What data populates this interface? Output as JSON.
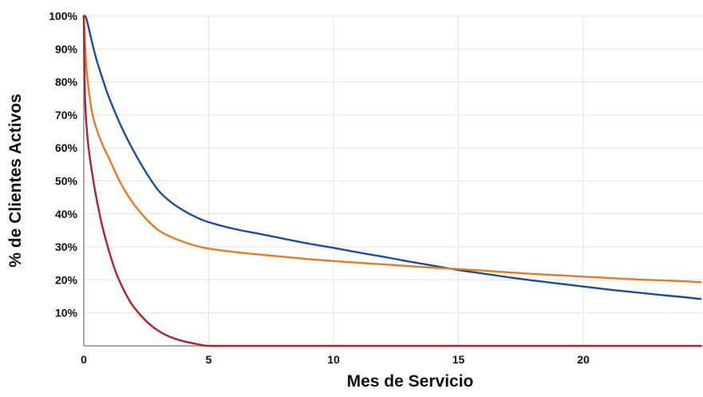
{
  "chart_data": {
    "type": "line",
    "title": "",
    "xlabel": "Mes de Servicio",
    "ylabel": "% de Clientes Activos",
    "xlim": [
      0,
      24.7
    ],
    "ylim": [
      0,
      100
    ],
    "grid": true,
    "x_ticks": [
      {
        "value": 0,
        "label": "0"
      },
      {
        "value": 5,
        "label": "5"
      },
      {
        "value": 10,
        "label": "10"
      },
      {
        "value": 15,
        "label": "15"
      },
      {
        "value": 20,
        "label": "20"
      }
    ],
    "y_ticks": [
      {
        "value": 10,
        "label": "10%"
      },
      {
        "value": 20,
        "label": "20%"
      },
      {
        "value": 30,
        "label": "30%"
      },
      {
        "value": 40,
        "label": "40%"
      },
      {
        "value": 50,
        "label": "50%"
      },
      {
        "value": 60,
        "label": "60%"
      },
      {
        "value": 70,
        "label": "70%"
      },
      {
        "value": 80,
        "label": "80%"
      },
      {
        "value": 90,
        "label": "90%"
      },
      {
        "value": 100,
        "label": "100%"
      }
    ],
    "series": [
      {
        "color": "#1a4e9a",
        "x": [
          0,
          0.1,
          0.3,
          0.5,
          0.75,
          1,
          1.5,
          2,
          2.5,
          3,
          3.5,
          4,
          4.5,
          5,
          6,
          7,
          8,
          9,
          10,
          11,
          12,
          13,
          14,
          15,
          16,
          17,
          18,
          19,
          20,
          21,
          22,
          23,
          24,
          24.7
        ],
        "y": [
          100,
          99.3,
          93,
          87,
          81,
          75.5,
          66.5,
          59,
          52.5,
          47,
          43.5,
          41,
          39,
          37.5,
          35.5,
          34,
          32.5,
          31,
          29.7,
          28.3,
          27,
          25.6,
          24.3,
          23,
          21.9,
          20.8,
          19.8,
          18.9,
          18,
          17.1,
          16.3,
          15.5,
          14.8,
          14.2
        ]
      },
      {
        "color": "#e87a24",
        "x": [
          0,
          0.1,
          0.3,
          0.5,
          0.75,
          1,
          1.5,
          2,
          2.5,
          3,
          3.5,
          4,
          4.5,
          5,
          6,
          7,
          8,
          9,
          10,
          11,
          12,
          13,
          14,
          15,
          16,
          17,
          18,
          19,
          20,
          21,
          22,
          23,
          24,
          24.7
        ],
        "y": [
          100,
          85,
          72,
          66,
          61,
          57,
          49,
          43,
          38.5,
          35,
          33,
          31.5,
          30.3,
          29.5,
          28.5,
          27.7,
          27,
          26.3,
          25.7,
          25.2,
          24.7,
          24.2,
          23.7,
          23.3,
          22.8,
          22.3,
          21.8,
          21.4,
          21,
          20.6,
          20.2,
          19.9,
          19.6,
          19.3
        ]
      },
      {
        "color": "#b81e2b",
        "x": [
          0,
          0.05,
          0.15,
          0.3,
          0.5,
          0.75,
          1,
          1.25,
          1.5,
          1.75,
          2,
          2.5,
          3,
          3.5,
          4,
          4.5,
          5,
          6,
          8,
          10,
          12,
          14,
          16,
          18,
          20,
          22,
          24,
          24.7
        ],
        "y": [
          100,
          75,
          63,
          54,
          45,
          36,
          29,
          23,
          18.5,
          14.8,
          11.8,
          7.5,
          4.5,
          2.6,
          1.4,
          0.6,
          0,
          0,
          0,
          0,
          0,
          0,
          0,
          0,
          0,
          0,
          0,
          0
        ]
      }
    ]
  }
}
